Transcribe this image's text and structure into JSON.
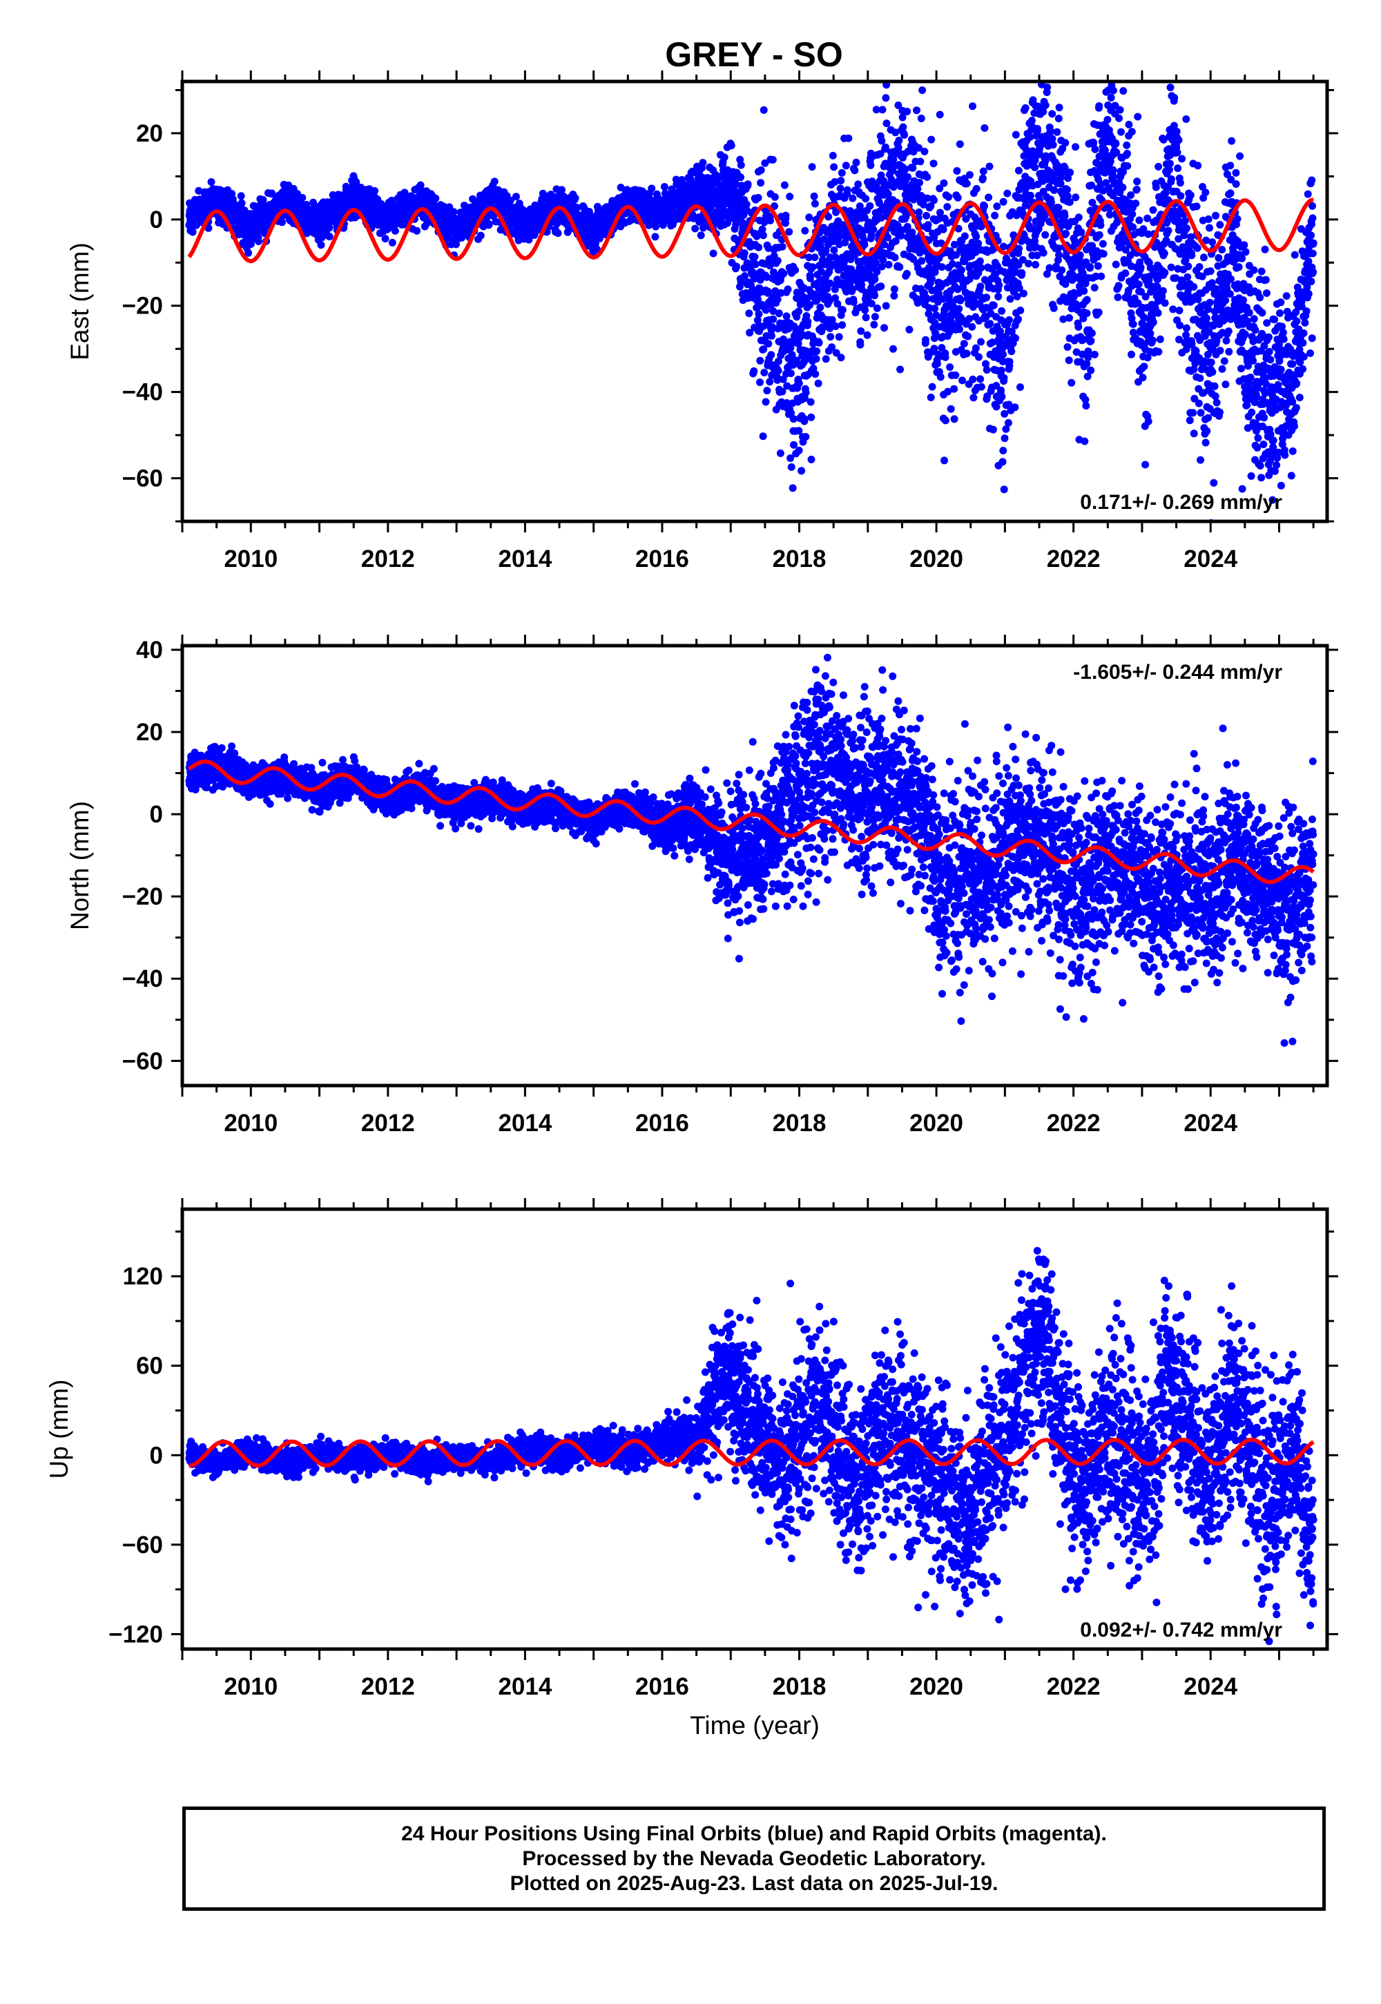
{
  "chart_data": [
    {
      "type": "scatter",
      "title": "GREY - SO",
      "xlabel": "",
      "ylabel": "East (mm)",
      "xlim": [
        2009.0,
        2025.7
      ],
      "ylim": [
        -70,
        32
      ],
      "xticks": [
        2010,
        2012,
        2014,
        2016,
        2018,
        2020,
        2022,
        2024
      ],
      "yticks": [
        -60,
        -40,
        -20,
        0,
        20
      ],
      "rate_text": "0.171+/- 0.269 mm/yr",
      "rate_position": "bottom-right",
      "grid": false,
      "series": [
        {
          "kind": "points",
          "color": "#0000ff",
          "x": [
            2009.1,
            2009.5,
            2010.0,
            2010.5,
            2011.0,
            2011.5,
            2012.0,
            2012.5,
            2013.0,
            2013.5,
            2014.0,
            2014.5,
            2015.0,
            2015.5,
            2016.0,
            2016.5,
            2016.8,
            2017.0,
            2017.3,
            2017.6,
            2017.8,
            2018.0,
            2018.3,
            2018.6,
            2018.9,
            2019.2,
            2019.5,
            2019.8,
            2020.1,
            2020.4,
            2020.7,
            2021.0,
            2021.3,
            2021.6,
            2021.9,
            2022.2,
            2022.5,
            2022.8,
            2023.1,
            2023.4,
            2023.7,
            2024.0,
            2024.3,
            2024.6,
            2024.9,
            2025.2,
            2025.5
          ],
          "y": [
            0,
            5,
            -2,
            4,
            -1,
            5,
            0,
            4,
            -2,
            4,
            -1,
            3,
            -3,
            4,
            2,
            6,
            4,
            8,
            -10,
            -20,
            -25,
            -35,
            -15,
            -5,
            -10,
            0,
            10,
            -5,
            -20,
            -10,
            -15,
            -30,
            5,
            15,
            -10,
            -20,
            20,
            -5,
            -25,
            15,
            -20,
            -30,
            -5,
            -35,
            -40,
            -38,
            -2
          ],
          "spread": [
            2,
            2,
            2,
            2,
            2,
            2,
            2,
            2,
            2,
            2,
            2,
            2,
            2,
            2,
            2,
            3,
            5,
            5,
            12,
            14,
            14,
            12,
            12,
            10,
            10,
            10,
            12,
            12,
            14,
            12,
            14,
            14,
            12,
            10,
            12,
            14,
            10,
            12,
            14,
            12,
            14,
            14,
            12,
            12,
            10,
            10,
            8
          ]
        },
        {
          "kind": "model",
          "color": "#ff0000",
          "trend_start": [
            2009.1,
            -4.0
          ],
          "trend_rate": 0.171,
          "amplitude": 5.8,
          "peak_phase": 0.5
        }
      ]
    },
    {
      "type": "scatter",
      "title": "",
      "xlabel": "",
      "ylabel": "North (mm)",
      "xlim": [
        2009.0,
        2025.7
      ],
      "ylim": [
        -66,
        41
      ],
      "xticks": [
        2010,
        2012,
        2014,
        2016,
        2018,
        2020,
        2022,
        2024
      ],
      "yticks": [
        -60,
        -40,
        -20,
        0,
        20,
        40
      ],
      "rate_text": "-1.605+/- 0.244 mm/yr",
      "rate_position": "top-right",
      "grid": false,
      "series": [
        {
          "kind": "points",
          "color": "#0000ff",
          "x": [
            2009.1,
            2009.5,
            2010.0,
            2010.5,
            2011.0,
            2011.5,
            2012.0,
            2012.5,
            2013.0,
            2013.5,
            2014.0,
            2014.5,
            2015.0,
            2015.5,
            2016.0,
            2016.5,
            2016.8,
            2017.0,
            2017.3,
            2017.6,
            2017.8,
            2018.0,
            2018.3,
            2018.6,
            2018.9,
            2019.2,
            2019.5,
            2019.8,
            2020.1,
            2020.4,
            2020.7,
            2021.0,
            2021.3,
            2021.6,
            2021.9,
            2022.2,
            2022.5,
            2022.8,
            2023.1,
            2023.4,
            2023.7,
            2024.0,
            2024.3,
            2024.6,
            2024.9,
            2025.2,
            2025.5
          ],
          "y": [
            10,
            12,
            8,
            9,
            6,
            9,
            4,
            6,
            2,
            4,
            1,
            2,
            -2,
            2,
            -3,
            0,
            -8,
            -12,
            -10,
            -5,
            0,
            5,
            15,
            10,
            2,
            8,
            5,
            0,
            -20,
            -15,
            -15,
            -10,
            -5,
            -10,
            -15,
            -20,
            -10,
            -15,
            -20,
            -15,
            -20,
            -20,
            -10,
            -15,
            -20,
            -25,
            -15
          ],
          "spread": [
            2,
            2,
            2,
            2,
            2,
            2,
            2,
            2,
            2,
            2,
            2,
            2,
            2,
            2,
            3,
            4,
            6,
            8,
            8,
            8,
            10,
            12,
            12,
            10,
            10,
            10,
            10,
            10,
            12,
            12,
            10,
            12,
            10,
            10,
            10,
            12,
            10,
            10,
            12,
            10,
            10,
            12,
            10,
            10,
            10,
            10,
            10
          ]
        },
        {
          "kind": "model",
          "color": "#ff0000",
          "trend_start": [
            2009.1,
            11.0
          ],
          "trend_rate": -1.605,
          "amplitude": 2.2,
          "peak_phase": 0.35
        }
      ]
    },
    {
      "type": "scatter",
      "title": "",
      "xlabel": "Time (year)",
      "ylabel": "Up (mm)",
      "xlim": [
        2009.0,
        2025.7
      ],
      "ylim": [
        -130,
        165
      ],
      "xticks": [
        2010,
        2012,
        2014,
        2016,
        2018,
        2020,
        2022,
        2024
      ],
      "yticks": [
        -120,
        -60,
        0,
        60,
        120
      ],
      "rate_text": "0.092+/- 0.742 mm/yr",
      "rate_position": "bottom-right",
      "grid": false,
      "series": [
        {
          "kind": "points",
          "color": "#0000ff",
          "x": [
            2009.1,
            2009.5,
            2010.0,
            2010.5,
            2011.0,
            2011.5,
            2012.0,
            2012.5,
            2013.0,
            2013.5,
            2014.0,
            2014.5,
            2015.0,
            2015.5,
            2016.0,
            2016.5,
            2016.8,
            2017.0,
            2017.3,
            2017.6,
            2017.8,
            2018.0,
            2018.3,
            2018.6,
            2018.9,
            2019.2,
            2019.5,
            2019.8,
            2020.1,
            2020.4,
            2020.7,
            2021.0,
            2021.3,
            2021.6,
            2021.9,
            2022.2,
            2022.5,
            2022.8,
            2023.1,
            2023.4,
            2023.7,
            2024.0,
            2024.3,
            2024.6,
            2024.9,
            2025.2,
            2025.5
          ],
          "y": [
            0,
            -5,
            2,
            -5,
            0,
            -5,
            2,
            -5,
            0,
            -5,
            5,
            0,
            8,
            2,
            10,
            10,
            40,
            50,
            20,
            0,
            -10,
            10,
            40,
            0,
            -20,
            20,
            10,
            -10,
            -20,
            -40,
            -20,
            10,
            60,
            80,
            0,
            -20,
            20,
            0,
            -20,
            60,
            10,
            -20,
            40,
            0,
            -40,
            10,
            -60
          ],
          "spread": [
            4,
            4,
            4,
            4,
            4,
            4,
            4,
            4,
            4,
            4,
            5,
            5,
            5,
            5,
            6,
            10,
            20,
            25,
            25,
            25,
            25,
            30,
            30,
            30,
            30,
            30,
            30,
            30,
            30,
            30,
            30,
            30,
            30,
            30,
            30,
            30,
            35,
            35,
            35,
            35,
            35,
            35,
            35,
            35,
            35,
            30,
            30
          ]
        },
        {
          "kind": "model",
          "color": "#ff0000",
          "trend_start": [
            2009.1,
            1.0
          ],
          "trend_rate": 0.092,
          "amplitude": 8.0,
          "peak_phase": 0.6
        }
      ]
    }
  ],
  "footer": {
    "line1": "24 Hour Positions Using Final Orbits (blue) and Rapid Orbits (magenta).",
    "line2": "Processed by the Nevada Geodetic Laboratory.",
    "line3": "Plotted on 2025-Aug-23. Last data on 2025-Jul-19."
  }
}
